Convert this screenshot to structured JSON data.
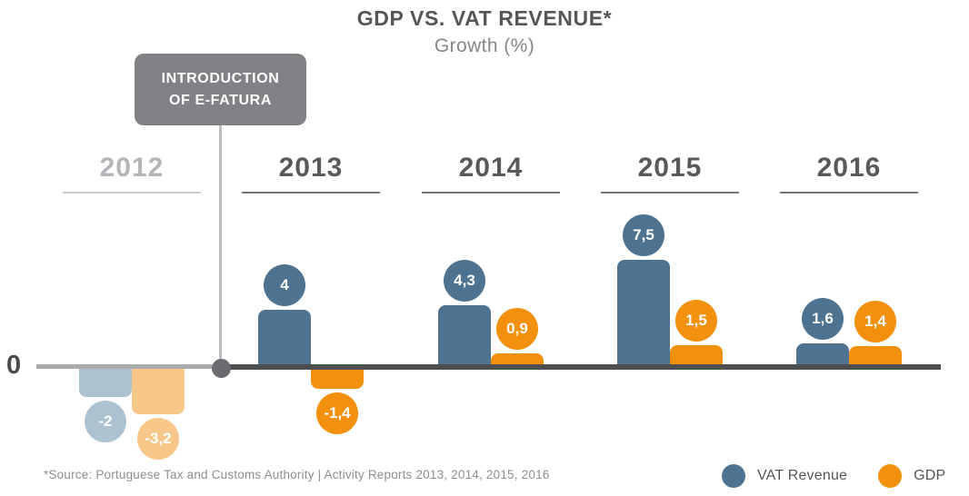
{
  "title": "GDP VS. VAT REVENUE*",
  "subtitle": "Growth (%)",
  "annotation": {
    "line1": "INTRODUCTION",
    "line2": "OF E-FATURA"
  },
  "zero_label": "0",
  "footer": "*Source: Portuguese Tax and Customs Authority | Activity Reports 2013, 2014, 2015, 2016",
  "legend": {
    "items": [
      {
        "label": "VAT Revenue",
        "color": "#4e7390"
      },
      {
        "label": "GDP",
        "color": "#f3900e"
      }
    ]
  },
  "colors": {
    "vat_blue": "#4e7390",
    "gdp_orange": "#f3900e",
    "vat_blue_faded": "#adc2d0",
    "gdp_orange_faded": "#f8c88b",
    "annotation_gray": "#808285",
    "axis_dark": "#4d4e50",
    "axis_light": "#a9abad",
    "year_dark": "#58595b",
    "year_faded": "#b4b5b8"
  },
  "chart_data": {
    "type": "bar",
    "title": "GDP VS. VAT REVENUE*",
    "subtitle": "Growth (%)",
    "ylabel": "Growth (%)",
    "categories": [
      "2012",
      "2013",
      "2014",
      "2015",
      "2016"
    ],
    "series": [
      {
        "name": "VAT Revenue",
        "color": "#4e7390",
        "values": [
          -2,
          4,
          4.3,
          7.5,
          1.6
        ],
        "labels": [
          "-2",
          "4",
          "4,3",
          "7,5",
          "1,6"
        ]
      },
      {
        "name": "GDP",
        "color": "#f3900e",
        "values": [
          -3.2,
          -1.4,
          0.9,
          1.5,
          1.4
        ],
        "labels": [
          "-3,2",
          "-1,4",
          "0,9",
          "1,5",
          "1,4"
        ]
      }
    ],
    "faded_categories": [
      "2012"
    ],
    "faded_colors": [
      "#adc2d0",
      "#f8c88b"
    ],
    "annotation": "INTRODUCTION OF E-FATURA (between 2012 and 2013)",
    "grid": false,
    "legend_position": "bottom-right"
  }
}
